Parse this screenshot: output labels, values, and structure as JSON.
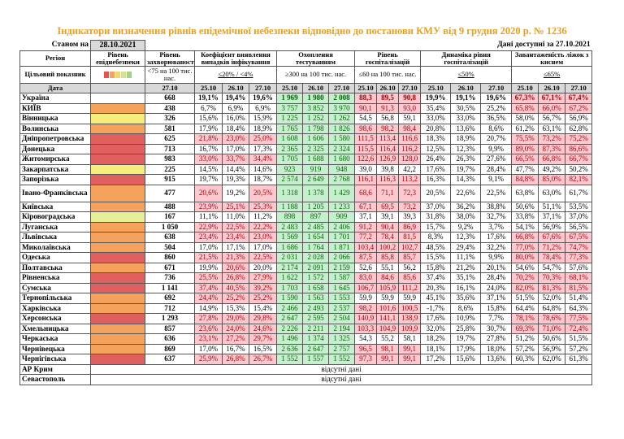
{
  "title": "Індикатори визначення рівнів епідемічної небезпеки відповідно до постанови КМУ від 9 грудня 2020 р. № 1236",
  "as_of_label": "Станом на",
  "as_of_date": "28.10.2021",
  "data_available_label": "Дані доступні за",
  "data_available_date": "27.10.2021",
  "headers": {
    "region": "Регіон",
    "target": "Цільовий показник",
    "date": "Дата",
    "level": "Рівень епіднебезпеки",
    "incidence": "Рівень захворюваності",
    "incidence_target": "<75 на 100 тис. нас.",
    "detection": "Коефіцієнт виявлення випадків інфікування",
    "detection_target": "≤20% / <4%",
    "testing": "Охоплення тестуванням",
    "testing_target": "≥300 на 100 тис. нас.",
    "hosp": "Рівень госпіталізацій",
    "hosp_target": "≤60 на 100 тис. нас.",
    "dyn": "Динаміка рівня госпіталізацій",
    "dyn_target": "≤50%",
    "oxy": "Завантаженість ліжок з киснем",
    "oxy_target": "≤65%",
    "d2710": "27.10",
    "d2510": "25.10",
    "d2610": "26.10"
  },
  "legend_colors": [
    "#e8534f",
    "#f5a35c",
    "#f7d56a",
    "#d6e38a",
    "#a8d08d"
  ],
  "level_colors": {
    "red": "#e06060",
    "orange": "#f5a35c",
    "yellow": "#f7ee7a",
    "lgreen": "#e6ef96"
  },
  "missing_text": "відсутні дані",
  "rows": [
    {
      "name": "Україна",
      "lvl": "",
      "inc": "668",
      "det": [
        "19,1%",
        "19,4%",
        "19,6%"
      ],
      "tst": [
        "1 969",
        "1 980",
        "2 008"
      ],
      "hsp": [
        "88,3",
        "89,5",
        "90,8"
      ],
      "dyn": [
        "19,9%",
        "19,1%",
        "19,6%"
      ],
      "oxy": [
        "67,3%",
        "67,1%",
        "67,4%"
      ],
      "bold": true
    },
    {
      "name": "КИЇВ",
      "lvl": "orange",
      "inc": "438",
      "det": [
        "6,7%",
        "6,9%",
        "6,9%"
      ],
      "tst": [
        "3 757",
        "3 852",
        "3 970"
      ],
      "hsp": [
        "90,1",
        "91,3",
        "93,0"
      ],
      "dyn": [
        "35,4%",
        "30,5%",
        "25,2%"
      ],
      "oxy": [
        "65,8%",
        "66,0%",
        "67,2%"
      ]
    },
    {
      "name": "Вінницька",
      "lvl": "yellow",
      "inc": "326",
      "det": [
        "15,6%",
        "16,0%",
        "15,9%"
      ],
      "tst": [
        "1 225",
        "1 252",
        "1 262"
      ],
      "hsp": [
        "54,5",
        "56,8",
        "59,1"
      ],
      "dyn": [
        "33,0%",
        "33,0%",
        "36,5%"
      ],
      "oxy": [
        "58,0%",
        "56,7%",
        "56,9%"
      ]
    },
    {
      "name": "Волинська",
      "lvl": "orange",
      "inc": "581",
      "det": [
        "17,9%",
        "18,4%",
        "18,9%"
      ],
      "tst": [
        "1 765",
        "1 798",
        "1 826"
      ],
      "hsp": [
        "98,6",
        "98,2",
        "98,4"
      ],
      "dyn": [
        "20,8%",
        "13,6%",
        "8,6%"
      ],
      "oxy": [
        "61,2%",
        "63,1%",
        "62,8%"
      ]
    },
    {
      "name": "Дніпропетровська",
      "lvl": "red",
      "inc": "625",
      "det": [
        "21,8%",
        "23,0%",
        "25,0%"
      ],
      "tst": [
        "1 608",
        "1 606",
        "1 580"
      ],
      "hsp": [
        "111,5",
        "113,4",
        "116,6"
      ],
      "dyn": [
        "18,3%",
        "18,9%",
        "20,7%"
      ],
      "oxy": [
        "75,5%",
        "73,2%",
        "75,2%"
      ]
    },
    {
      "name": "Донецька",
      "lvl": "red",
      "inc": "713",
      "det": [
        "16,7%",
        "17,0%",
        "17,3%"
      ],
      "tst": [
        "2 365",
        "2 325",
        "2 324"
      ],
      "hsp": [
        "115,5",
        "116,4",
        "116,2"
      ],
      "dyn": [
        "12,5%",
        "12,3%",
        "9,9%"
      ],
      "oxy": [
        "89,0%",
        "87,3%",
        "86,6%"
      ]
    },
    {
      "name": "Житомирська",
      "lvl": "red",
      "inc": "983",
      "det": [
        "33,0%",
        "33,7%",
        "34,4%"
      ],
      "tst": [
        "1 705",
        "1 688",
        "1 680"
      ],
      "hsp": [
        "122,6",
        "126,9",
        "128,0"
      ],
      "dyn": [
        "26,4%",
        "26,3%",
        "27,6%"
      ],
      "oxy": [
        "66,5%",
        "66,8%",
        "66,7%"
      ]
    },
    {
      "name": "Закарпатська",
      "lvl": "yellow",
      "inc": "225",
      "det": [
        "14,5%",
        "14,4%",
        "14,6%"
      ],
      "tst": [
        "923",
        "919",
        "948"
      ],
      "hsp": [
        "39,0",
        "39,8",
        "42,2"
      ],
      "dyn": [
        "17,6%",
        "19,7%",
        "28,4%"
      ],
      "oxy": [
        "47,7%",
        "49,2%",
        "50,2%"
      ]
    },
    {
      "name": "Запорізька",
      "lvl": "red",
      "inc": "915",
      "det": [
        "19,7%",
        "19,3%",
        "18,7%"
      ],
      "tst": [
        "2 574",
        "2 649",
        "2 768"
      ],
      "hsp": [
        "116,1",
        "116,3",
        "113,2"
      ],
      "dyn": [
        "16,3%",
        "14,3%",
        "9,1%"
      ],
      "oxy": [
        "84,8%",
        "85,0%",
        "82,1%"
      ]
    },
    {
      "name": "Івано-Франківська",
      "lvl": "orange",
      "inc": "477",
      "det": [
        "20,6%",
        "19,2%",
        "20,5%"
      ],
      "tst": [
        "1 318",
        "1 378",
        "1 429"
      ],
      "hsp": [
        "68,6",
        "71,1",
        "72,3"
      ],
      "dyn": [
        "20,5%",
        "22,6%",
        "22,5%"
      ],
      "oxy": [
        "63,8%",
        "63,0%",
        "61,7%"
      ],
      "tall": true
    },
    {
      "name": "Київська",
      "lvl": "orange",
      "inc": "488",
      "det": [
        "23,9%",
        "25,1%",
        "25,3%"
      ],
      "tst": [
        "1 188",
        "1 205",
        "1 233"
      ],
      "hsp": [
        "67,1",
        "69,5",
        "73,2"
      ],
      "dyn": [
        "37,0%",
        "36,2%",
        "38,8%"
      ],
      "oxy": [
        "50,6%",
        "51,1%",
        "53,5%"
      ]
    },
    {
      "name": "Кіровоградська",
      "lvl": "lgreen",
      "inc": "167",
      "det": [
        "11,1%",
        "11,0%",
        "11,2%"
      ],
      "tst": [
        "898",
        "897",
        "909"
      ],
      "hsp": [
        "37,1",
        "39,1",
        "39,3"
      ],
      "dyn": [
        "31,8%",
        "38,0%",
        "32,7%"
      ],
      "oxy": [
        "33,8%",
        "37,1%",
        "37,0%"
      ]
    },
    {
      "name": "Луганська",
      "lvl": "orange",
      "inc": "1 050",
      "det": [
        "22,9%",
        "22,5%",
        "22,2%"
      ],
      "tst": [
        "2 483",
        "2 485",
        "2 406"
      ],
      "hsp": [
        "91,2",
        "90,4",
        "86,9"
      ],
      "dyn": [
        "15,7%",
        "9,2%",
        "3,7%"
      ],
      "oxy": [
        "54,1%",
        "56,9%",
        "56,5%"
      ]
    },
    {
      "name": "Львівська",
      "lvl": "orange",
      "inc": "638",
      "det": [
        "23,4%",
        "23,4%",
        "23,0%"
      ],
      "tst": [
        "1 569",
        "1 654",
        "1 701"
      ],
      "hsp": [
        "77,2",
        "78,4",
        "81,5"
      ],
      "dyn": [
        "8,3%",
        "12,3%",
        "17,6%"
      ],
      "oxy": [
        "66,8%",
        "67,6%",
        "67,5%"
      ]
    },
    {
      "name": "Миколаївська",
      "lvl": "orange",
      "inc": "504",
      "det": [
        "17,0%",
        "17,1%",
        "17,0%"
      ],
      "tst": [
        "1 686",
        "1 764",
        "1 871"
      ],
      "hsp": [
        "103,4",
        "100,2",
        "102,7"
      ],
      "dyn": [
        "48,5%",
        "29,4%",
        "32,2%"
      ],
      "oxy": [
        "77,0%",
        "71,2%",
        "74,7%"
      ]
    },
    {
      "name": "Одеська",
      "lvl": "red",
      "inc": "860",
      "det": [
        "21,5%",
        "21,3%",
        "22,5%"
      ],
      "tst": [
        "2 031",
        "2 028",
        "2 066"
      ],
      "hsp": [
        "87,5",
        "85,8",
        "85,7"
      ],
      "dyn": [
        "15,5%",
        "11,1%",
        "9,9%"
      ],
      "oxy": [
        "80,0%",
        "78,4%",
        "77,3%"
      ]
    },
    {
      "name": "Полтавська",
      "lvl": "orange",
      "inc": "671",
      "det": [
        "19,9%",
        "20,6%",
        "20,0%"
      ],
      "tst": [
        "2 174",
        "2 091",
        "2 159"
      ],
      "hsp": [
        "52,6",
        "55,1",
        "56,2"
      ],
      "dyn": [
        "15,8%",
        "21,2%",
        "20,1%"
      ],
      "oxy": [
        "54,6%",
        "54,7%",
        "57,6%"
      ]
    },
    {
      "name": "Рівненська",
      "lvl": "red",
      "inc": "736",
      "det": [
        "25,5%",
        "26,8%",
        "27,9%"
      ],
      "tst": [
        "1 622",
        "1 572",
        "1 587"
      ],
      "hsp": [
        "83,0",
        "84,6",
        "85,6"
      ],
      "dyn": [
        "37,4%",
        "35,1%",
        "28,4%"
      ],
      "oxy": [
        "70,2%",
        "70,3%",
        "68,1%"
      ]
    },
    {
      "name": "Сумська",
      "lvl": "red",
      "inc": "1 141",
      "det": [
        "37,4%",
        "40,5%",
        "39,2%"
      ],
      "tst": [
        "1 703",
        "1 658",
        "1 645"
      ],
      "hsp": [
        "106,7",
        "105,9",
        "111,2"
      ],
      "dyn": [
        "20,3%",
        "16,1%",
        "24,0%"
      ],
      "oxy": [
        "82,0%",
        "81,3%",
        "81,5%"
      ]
    },
    {
      "name": "Тернопільська",
      "lvl": "orange",
      "inc": "692",
      "det": [
        "24,4%",
        "25,2%",
        "25,2%"
      ],
      "tst": [
        "1 590",
        "1 563",
        "1 553"
      ],
      "hsp": [
        "59,9",
        "59,9",
        "59,9"
      ],
      "dyn": [
        "45,1%",
        "35,6%",
        "37,1%"
      ],
      "oxy": [
        "51,5%",
        "52,0%",
        "51,4%"
      ]
    },
    {
      "name": "Харківська",
      "lvl": "orange",
      "inc": "712",
      "det": [
        "14,9%",
        "15,3%",
        "15,4%"
      ],
      "tst": [
        "2 466",
        "2 493",
        "2 537"
      ],
      "hsp": [
        "98,2",
        "101,6",
        "100,5"
      ],
      "dyn": [
        "-1,7%",
        "8,6%",
        "15,8%"
      ],
      "oxy": [
        "64,4%",
        "64,8%",
        "64,3%"
      ]
    },
    {
      "name": "Херсонська",
      "lvl": "red",
      "inc": "1 293",
      "det": [
        "27,8%",
        "29,0%",
        "29,8%"
      ],
      "tst": [
        "2 647",
        "2 595",
        "2 504"
      ],
      "hsp": [
        "140,9",
        "141,1",
        "138,9"
      ],
      "dyn": [
        "17,6%",
        "10,9%",
        "7,7%"
      ],
      "oxy": [
        "78,1%",
        "78,6%",
        "77,5%"
      ]
    },
    {
      "name": "Хмельницька",
      "lvl": "orange",
      "inc": "857",
      "det": [
        "23,6%",
        "24,0%",
        "24,6%"
      ],
      "tst": [
        "2 226",
        "2 211",
        "2 194"
      ],
      "hsp": [
        "103,3",
        "104,9",
        "109,9"
      ],
      "dyn": [
        "32,0%",
        "25,8%",
        "30,7%"
      ],
      "oxy": [
        "69,3%",
        "71,0%",
        "72,4%"
      ]
    },
    {
      "name": "Черкаська",
      "lvl": "orange",
      "inc": "636",
      "det": [
        "23,1%",
        "27,2%",
        "29,7%"
      ],
      "tst": [
        "1 496",
        "1 374",
        "1 325"
      ],
      "hsp": [
        "54,3",
        "55,2",
        "58,1"
      ],
      "dyn": [
        "18,2%",
        "19,7%",
        "27,8%"
      ],
      "oxy": [
        "51,2%",
        "50,6%",
        "51,5%"
      ]
    },
    {
      "name": "Чернівецька",
      "lvl": "orange",
      "inc": "869",
      "det": [
        "17,0%",
        "16,7%",
        "16,5%"
      ],
      "tst": [
        "2 636",
        "2 647",
        "2 757"
      ],
      "hsp": [
        "96,5",
        "98,1",
        "99,1"
      ],
      "dyn": [
        "18,1%",
        "17,9%",
        "18,0%"
      ],
      "oxy": [
        "57,2%",
        "56,9%",
        "57,2%"
      ]
    },
    {
      "name": "Чернігівська",
      "lvl": "red",
      "inc": "637",
      "det": [
        "25,9%",
        "26,8%",
        "26,7%"
      ],
      "tst": [
        "1 552",
        "1 557",
        "1 552"
      ],
      "hsp": [
        "97,3",
        "99,1",
        "99,1"
      ],
      "dyn": [
        "17,2%",
        "15,6%",
        "13,6%"
      ],
      "oxy": [
        "60,3%",
        "62,0%",
        "61,3%"
      ]
    }
  ],
  "missing_rows": [
    "АР Крим",
    "Севастополь"
  ]
}
